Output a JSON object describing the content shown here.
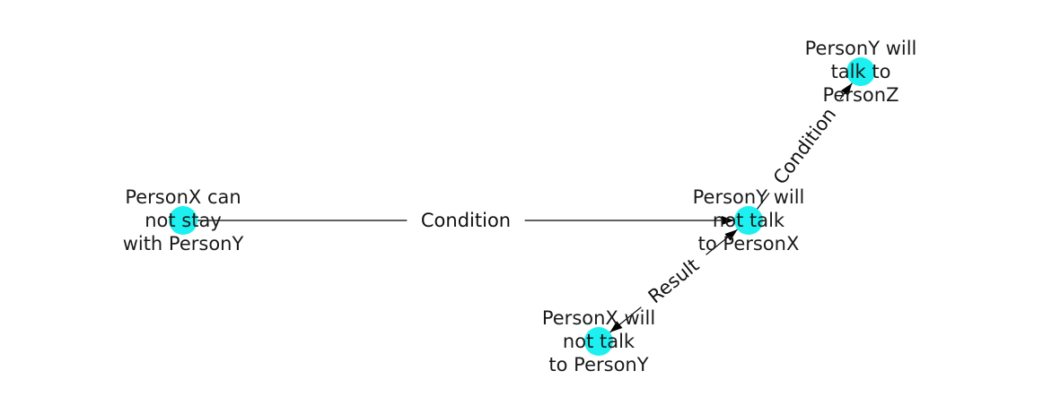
{
  "graph": {
    "node_color": "#1cf0f0",
    "edge_color": "#000000",
    "label_color": "#1a1a1a",
    "nodes": [
      {
        "id": "n1",
        "lines": [
          "PersonX can",
          "not stay",
          "with PersonY"
        ]
      },
      {
        "id": "n2",
        "lines": [
          "PersonY will",
          "not talk",
          "to PersonX"
        ]
      },
      {
        "id": "n3",
        "lines": [
          "PersonY will",
          "talk to",
          "PersonZ"
        ]
      },
      {
        "id": "n4",
        "lines": [
          "PersonX will",
          "not talk",
          "to PersonY"
        ]
      }
    ],
    "edges": [
      {
        "id": "e1",
        "from": "n1",
        "to": "n2",
        "label": "Condition"
      },
      {
        "id": "e2",
        "from": "n2",
        "to": "n3",
        "label": "Condition"
      },
      {
        "id": "e3",
        "from": "n2",
        "to": "n4",
        "label": "Result",
        "bidirectional": true
      }
    ]
  }
}
